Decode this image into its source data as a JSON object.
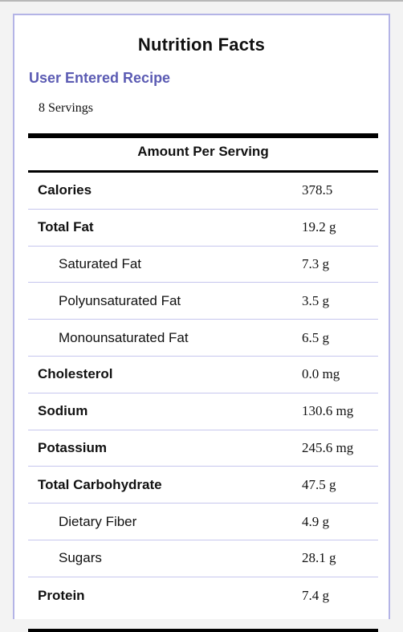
{
  "label": {
    "title": "Nutrition Facts",
    "recipe_name": "User Entered Recipe",
    "servings": "8 Servings",
    "amount_header": "Amount Per Serving"
  },
  "nutrients": [
    {
      "name": "Calories",
      "value": "378.5",
      "sub": false
    },
    {
      "name": "Total Fat",
      "value": "19.2 g",
      "sub": false
    },
    {
      "name": "Saturated Fat",
      "value": "7.3 g",
      "sub": true
    },
    {
      "name": "Polyunsaturated Fat",
      "value": "3.5 g",
      "sub": true
    },
    {
      "name": "Monounsaturated Fat",
      "value": "6.5 g",
      "sub": true
    },
    {
      "name": "Cholesterol",
      "value": "0.0 mg",
      "sub": false
    },
    {
      "name": "Sodium",
      "value": "130.6 mg",
      "sub": false
    },
    {
      "name": "Potassium",
      "value": "245.6 mg",
      "sub": false
    },
    {
      "name": "Total Carbohydrate",
      "value": "47.5 g",
      "sub": false
    },
    {
      "name": "Dietary Fiber",
      "value": "4.9 g",
      "sub": true
    },
    {
      "name": "Sugars",
      "value": "28.1 g",
      "sub": true
    },
    {
      "name": "Protein",
      "value": "7.4 g",
      "sub": false
    }
  ],
  "colors": {
    "recipe_link": "#5b5bb3",
    "panel_border": "#b4b4e6",
    "row_divider": "#c6c6ee",
    "rule": "#000000"
  }
}
